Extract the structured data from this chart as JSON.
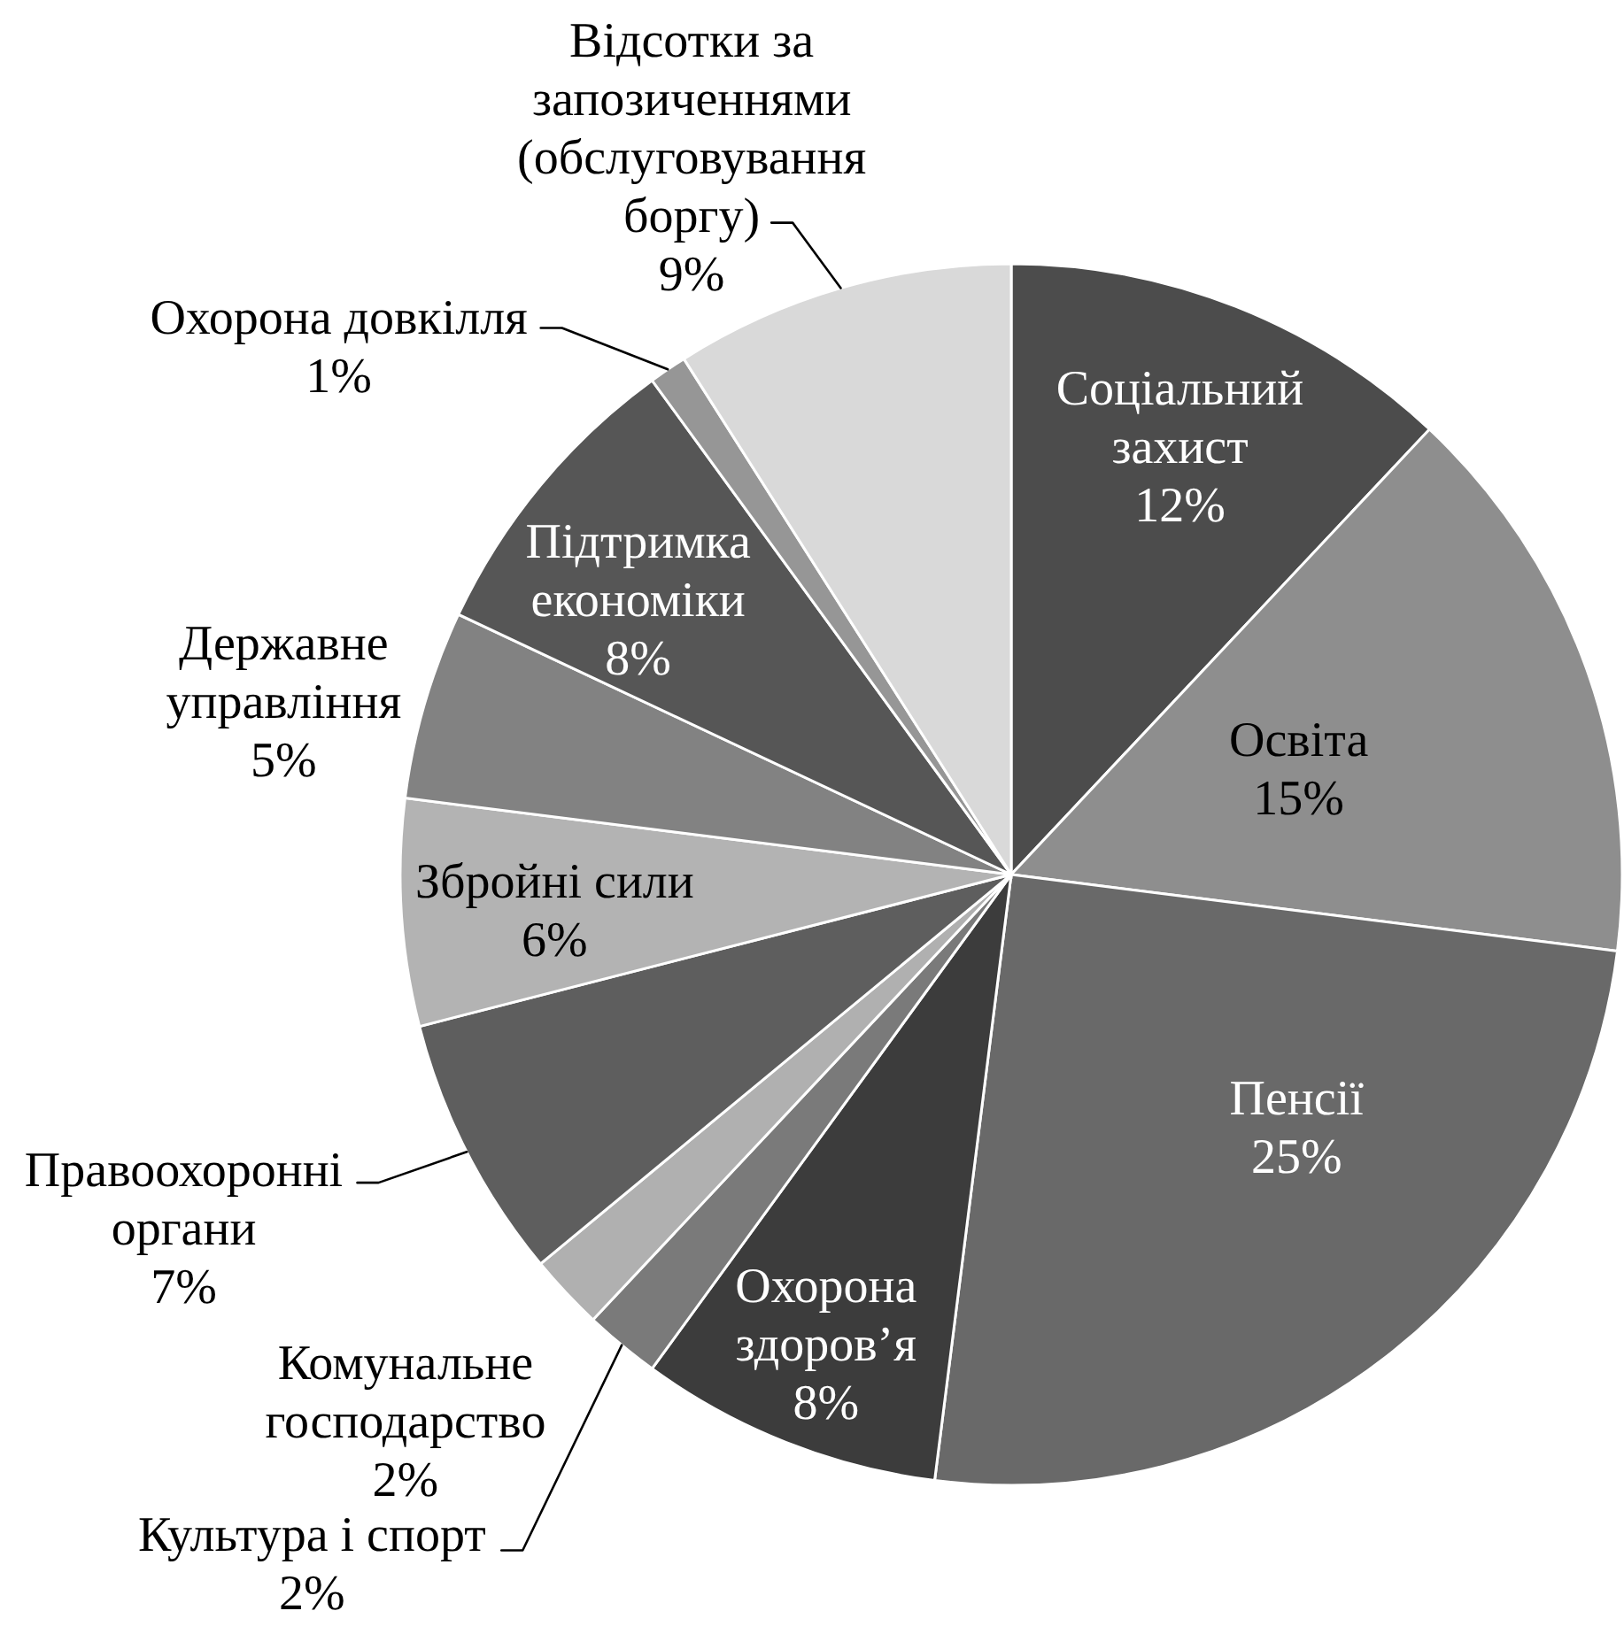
{
  "chart_data": {
    "type": "pie",
    "categories": [
      "Соціальний захист",
      "Освіта",
      "Пенсії",
      "Охорона здоров’я",
      "Культура і спорт",
      "Комунальне господарство",
      "Правоохоронні органи",
      "Збройні сили",
      "Державне управління",
      "Підтримка економіки",
      "Охорона довкілля",
      "Відсотки за запозиченнями (обслуговування боргу)"
    ],
    "values": [
      12,
      15,
      25,
      8,
      2,
      2,
      7,
      6,
      5,
      8,
      1,
      9
    ],
    "colors": [
      "#4c4c4c",
      "#8e8e8e",
      "#696969",
      "#3c3c3c",
      "#7a7a7a",
      "#b0b0b0",
      "#5e5e5e",
      "#b3b3b3",
      "#828282",
      "#565656",
      "#969696",
      "#d9d9d9"
    ],
    "value_labels": [
      "12%",
      "15%",
      "25%",
      "8%",
      "2%",
      "2%",
      "7%",
      "6%",
      "5%",
      "8%",
      "1%",
      "9%"
    ]
  }
}
